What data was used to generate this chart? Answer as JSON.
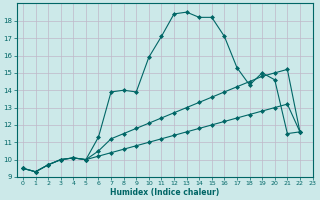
{
  "xlabel": "Humidex (Indice chaleur)",
  "background_color": "#cce9e9",
  "line_color": "#006666",
  "xlim": [
    -0.5,
    23
  ],
  "ylim": [
    9,
    19
  ],
  "xticks": [
    0,
    1,
    2,
    3,
    4,
    5,
    6,
    7,
    8,
    9,
    10,
    11,
    12,
    13,
    14,
    15,
    16,
    17,
    18,
    19,
    20,
    21,
    22,
    23
  ],
  "yticks": [
    9,
    10,
    11,
    12,
    13,
    14,
    15,
    16,
    17,
    18
  ],
  "line1_x": [
    0,
    1,
    2,
    3,
    4,
    5,
    6,
    7,
    8,
    9,
    10,
    11,
    12,
    13,
    14,
    15,
    16,
    17,
    18,
    19,
    20,
    21,
    22
  ],
  "line1_y": [
    9.5,
    9.3,
    9.7,
    10.0,
    10.1,
    10.0,
    11.3,
    13.9,
    14.0,
    13.9,
    15.9,
    17.1,
    18.4,
    18.5,
    18.2,
    18.2,
    17.1,
    15.3,
    14.3,
    15.0,
    14.6,
    11.5,
    11.6
  ],
  "line2_x": [
    0,
    1,
    2,
    3,
    4,
    5,
    6,
    7,
    8,
    9,
    10,
    11,
    12,
    13,
    14,
    15,
    16,
    17,
    18,
    19,
    20,
    21,
    22
  ],
  "line2_y": [
    9.5,
    9.3,
    9.7,
    10.0,
    10.1,
    10.0,
    10.5,
    11.2,
    11.5,
    11.8,
    12.1,
    12.4,
    12.7,
    13.0,
    13.3,
    13.6,
    13.9,
    14.2,
    14.5,
    14.8,
    15.0,
    15.2,
    11.6
  ],
  "line3_x": [
    0,
    1,
    2,
    3,
    4,
    5,
    6,
    7,
    8,
    9,
    10,
    11,
    12,
    13,
    14,
    15,
    16,
    17,
    18,
    19,
    20,
    21,
    22
  ],
  "line3_y": [
    9.5,
    9.3,
    9.7,
    10.0,
    10.1,
    10.0,
    10.2,
    10.4,
    10.6,
    10.8,
    11.0,
    11.2,
    11.4,
    11.6,
    11.8,
    12.0,
    12.2,
    12.4,
    12.6,
    12.8,
    13.0,
    13.2,
    11.6
  ]
}
